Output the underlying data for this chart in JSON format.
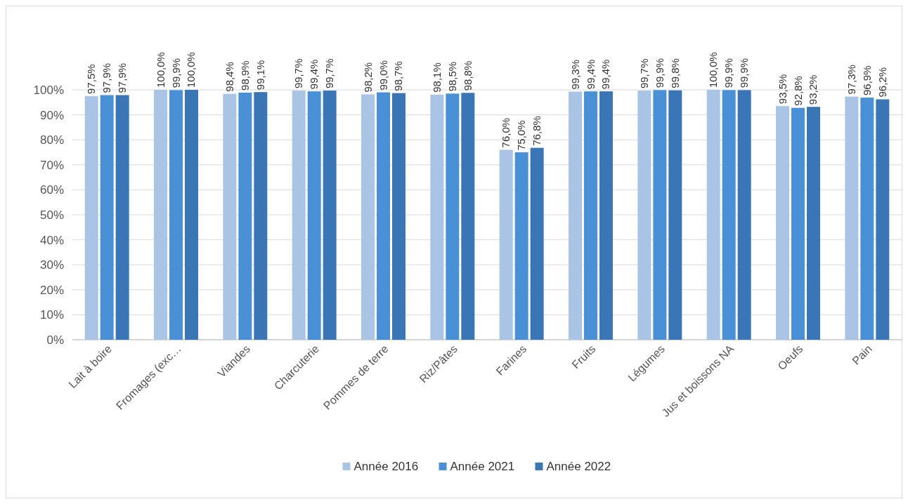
{
  "chart_data": {
    "type": "bar",
    "categories": [
      "Lait à boire",
      "Fromages (exc…",
      "Viandes",
      "Charcuterie",
      "Pommes de terre",
      "Riz/Pâtes",
      "Farines",
      "Fruits",
      "Légumes",
      "Jus et boissons NA",
      "Oeufs",
      "Pain"
    ],
    "series": [
      {
        "name": "Année 2016",
        "color": "#a9c4e4",
        "values": [
          97.5,
          100.0,
          98.4,
          99.7,
          98.2,
          98.1,
          76.0,
          99.3,
          99.7,
          100.0,
          93.5,
          97.3
        ],
        "value_labels": [
          "97,5%",
          "100,0%",
          "98,4%",
          "99,7%",
          "98,2%",
          "98,1%",
          "76,0%",
          "99,3%",
          "99,7%",
          "100,0%",
          "93,5%",
          "97,3%"
        ]
      },
      {
        "name": "Année 2021",
        "color": "#4a90d6",
        "values": [
          97.9,
          99.9,
          98.9,
          99.4,
          99.0,
          98.5,
          75.0,
          99.4,
          99.9,
          99.9,
          92.8,
          96.9
        ],
        "value_labels": [
          "97,9%",
          "99,9%",
          "98,9%",
          "99,4%",
          "99,0%",
          "98,5%",
          "75,0%",
          "99,4%",
          "99,9%",
          "99,9%",
          "92,8%",
          "96,9%"
        ]
      },
      {
        "name": "Année 2022",
        "color": "#3a75b5",
        "values": [
          97.9,
          100.0,
          99.1,
          99.7,
          98.7,
          98.8,
          76.8,
          99.4,
          99.8,
          99.9,
          93.2,
          96.2
        ],
        "value_labels": [
          "97,9%",
          "100,0%",
          "99,1%",
          "99,7%",
          "98,7%",
          "98,8%",
          "76,8%",
          "99,4%",
          "99,8%",
          "99,9%",
          "93,2%",
          "96,2%"
        ]
      }
    ],
    "ylim": [
      0,
      100
    ],
    "yticks": [
      {
        "value": 0,
        "label": "0%"
      },
      {
        "value": 10,
        "label": "10%"
      },
      {
        "value": 20,
        "label": "20%"
      },
      {
        "value": 30,
        "label": "30%"
      },
      {
        "value": 40,
        "label": "40%"
      },
      {
        "value": 50,
        "label": "50%"
      },
      {
        "value": 60,
        "label": "60%"
      },
      {
        "value": 70,
        "label": "70%"
      },
      {
        "value": 80,
        "label": "80%"
      },
      {
        "value": 90,
        "label": "90%"
      },
      {
        "value": 100,
        "label": "100%"
      }
    ],
    "grid": "y",
    "legend": "bottom"
  }
}
